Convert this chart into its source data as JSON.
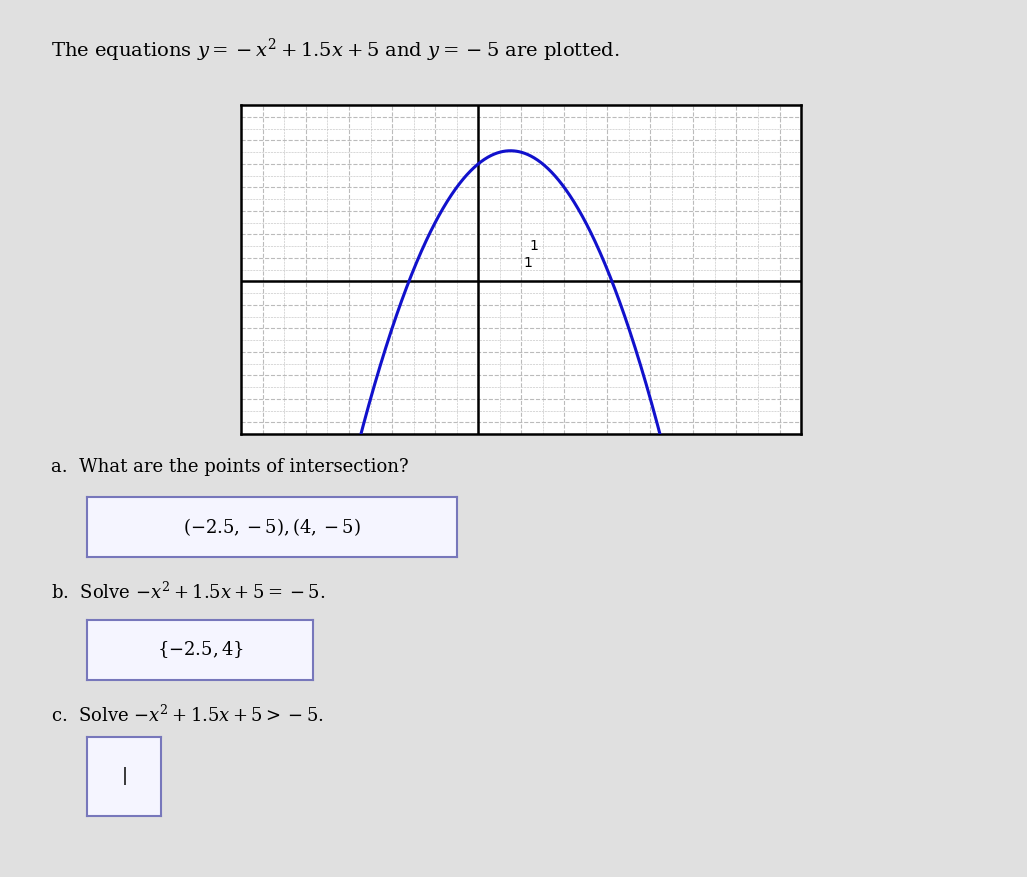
{
  "bg_color": "#e0e0e0",
  "graph_bg": "#ffffff",
  "grid_color": "#bbbbbb",
  "grid_major_color": "#999999",
  "parabola_color": "#1111cc",
  "hline_color": "#cc2222",
  "axis_color": "#000000",
  "x_range": [
    -5.5,
    7.5
  ],
  "y_range": [
    -6.5,
    7.5
  ],
  "x_axis_at": 0,
  "y_axis_at": 0,
  "grid_step": 0.5,
  "title_text": "The equations $y=-x^2+1.5x+5$ and $y=-5$ are plotted.",
  "part_a_label": "a.  What are the points of intersection?",
  "part_a_answer": "$(-2.5,-5),(4,-5)$",
  "part_b_label": "b.  Solve $-x^2+1.5x+5=-5$.",
  "part_b_answer": "$\\{-2.5,4\\}$",
  "part_c_label": "c.  Solve $-x^2+1.5x+5>-5$.",
  "part_c_answer": "|",
  "answer_box_color": "#7777bb",
  "answer_box_bg": "#f5f5ff",
  "tick_1_label": "1",
  "tick_1_x_pos": 1.05,
  "tick_1_y_pos_upper": 0.5,
  "tick_1_x_pos2": 1.2,
  "tick_1_y_pos_lower": 1.2
}
